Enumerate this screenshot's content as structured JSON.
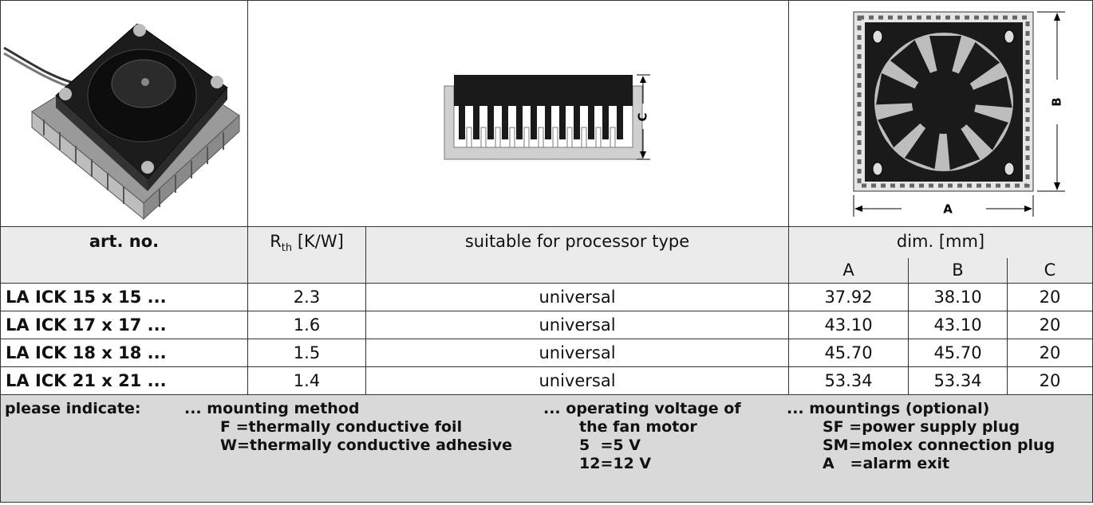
{
  "images": {
    "profile_label": "C",
    "width_label": "A",
    "height_label": "B"
  },
  "table": {
    "header": {
      "art_no": "art. no.",
      "rth": {
        "symbol": "R",
        "subscript": "th",
        "unit": "[K/W]"
      },
      "processor": "suitable for processor type",
      "dim": "dim. [mm]",
      "dim_columns": [
        "A",
        "B",
        "C"
      ]
    },
    "rows": [
      [
        "LA ICK 15 x 15 ...",
        "2.3",
        "universal",
        "37.92",
        "38.10",
        "20"
      ],
      [
        "LA ICK 17 x 17 ...",
        "1.6",
        "universal",
        "43.10",
        "43.10",
        "20"
      ],
      [
        "LA ICK 18 x 18 ...",
        "1.5",
        "universal",
        "45.70",
        "45.70",
        "20"
      ],
      [
        "LA ICK 21 x 21 ...",
        "1.4",
        "universal",
        "53.34",
        "53.34",
        "20"
      ]
    ]
  },
  "footer": {
    "label": "please indicate:",
    "groups": [
      {
        "heading": "... mounting method",
        "items": [
          "F =thermally conductive foil",
          "W=thermally conductive adhesive"
        ]
      },
      {
        "heading": "... operating voltage of",
        "items": [
          "the fan motor",
          "5  =5 V",
          "12=12 V"
        ]
      },
      {
        "heading": "... mountings (optional)",
        "items": [
          "SF =power supply plug",
          "SM=molex connection plug",
          "A   =alarm exit"
        ]
      }
    ]
  }
}
